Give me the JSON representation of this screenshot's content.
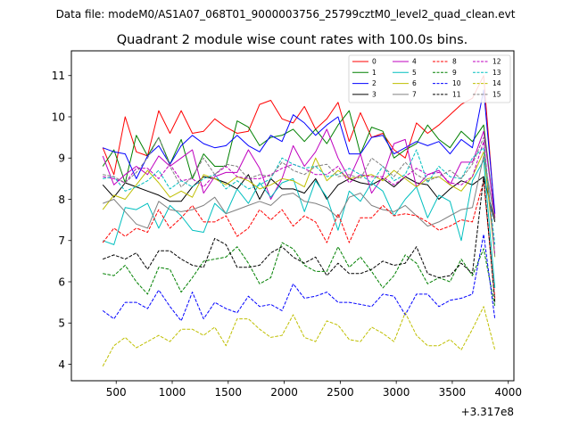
{
  "suptitle": "Data file: modeM0/AS1A07_068T01_9000003756_25799cztM0_level2_quad_clean.evt",
  "chart_data": {
    "type": "line",
    "title": "Quadrant 2 module wise count rates with 100.0s bins.",
    "xlabel": "",
    "ylabel": "",
    "x_offset_label": "+3.317e8",
    "xlim": [
      100,
      4050
    ],
    "ylim": [
      3.6,
      11.6
    ],
    "xticks": [
      500,
      1000,
      1500,
      2000,
      2500,
      3000,
      3500,
      4000
    ],
    "yticks": [
      4,
      5,
      6,
      7,
      8,
      9,
      10,
      11
    ],
    "legend_position": "top-right",
    "x": [
      380,
      480,
      580,
      680,
      780,
      880,
      980,
      1080,
      1180,
      1280,
      1380,
      1480,
      1580,
      1680,
      1780,
      1880,
      1980,
      2080,
      2180,
      2280,
      2380,
      2480,
      2580,
      2680,
      2780,
      2880,
      2980,
      3080,
      3180,
      3280,
      3380,
      3480,
      3580,
      3680,
      3780,
      3880
    ],
    "series": [
      {
        "name": "0",
        "color": "#ff0000",
        "dash": "solid",
        "values": [
          9.25,
          8.6,
          10.0,
          9.15,
          9.05,
          10.15,
          9.6,
          10.15,
          9.6,
          9.65,
          9.95,
          9.75,
          9.6,
          9.65,
          10.3,
          10.4,
          9.95,
          9.85,
          10.25,
          9.7,
          9.95,
          10.35,
          9.4,
          10.1,
          9.5,
          9.6,
          9.2,
          9.0,
          9.85,
          9.6,
          9.8,
          10.05,
          10.3,
          10.45,
          11.0,
          7.55
        ]
      },
      {
        "name": "1",
        "color": "#008000",
        "dash": "solid",
        "values": [
          8.8,
          9.2,
          8.4,
          9.55,
          9.05,
          9.5,
          8.85,
          9.45,
          8.5,
          9.1,
          8.8,
          8.8,
          9.9,
          9.75,
          9.3,
          9.5,
          9.55,
          9.7,
          9.4,
          9.7,
          9.35,
          9.8,
          10.15,
          9.1,
          9.75,
          9.65,
          9.0,
          9.2,
          9.35,
          9.8,
          9.45,
          9.25,
          9.65,
          9.4,
          9.8,
          7.5
        ]
      },
      {
        "name": "2",
        "color": "#0000ff",
        "dash": "solid",
        "values": [
          9.25,
          9.15,
          9.1,
          8.5,
          9.05,
          9.3,
          8.85,
          9.3,
          9.55,
          9.35,
          9.25,
          9.3,
          9.55,
          9.3,
          9.15,
          9.55,
          9.4,
          10.05,
          9.85,
          9.55,
          9.8,
          10.0,
          9.1,
          9.1,
          9.5,
          9.55,
          9.1,
          9.25,
          9.4,
          9.3,
          9.4,
          9.1,
          9.45,
          9.25,
          10.65,
          7.65
        ]
      },
      {
        "name": "3",
        "color": "#000000",
        "dash": "solid",
        "values": [
          8.35,
          8.05,
          8.4,
          8.3,
          8.2,
          8.1,
          7.95,
          7.95,
          8.3,
          8.55,
          8.5,
          8.4,
          8.25,
          8.6,
          8.0,
          8.5,
          8.25,
          8.25,
          8.15,
          8.5,
          8.0,
          8.35,
          8.5,
          8.4,
          8.35,
          8.5,
          8.3,
          8.55,
          8.4,
          8.35,
          8.0,
          8.25,
          8.45,
          8.35,
          8.55,
          7.45
        ]
      },
      {
        "name": "4",
        "color": "#bf00bf",
        "dash": "solid",
        "values": [
          9.05,
          8.35,
          8.6,
          8.8,
          8.6,
          9.05,
          8.8,
          9.0,
          9.2,
          8.15,
          8.55,
          8.65,
          8.65,
          9.2,
          8.75,
          8.0,
          8.5,
          9.3,
          8.8,
          9.15,
          9.7,
          9.0,
          8.5,
          9.1,
          8.15,
          8.55,
          9.35,
          9.45,
          8.3,
          8.6,
          8.7,
          8.35,
          8.9,
          8.9,
          9.65,
          7.55
        ]
      },
      {
        "name": "5",
        "color": "#00bfbf",
        "dash": "solid",
        "values": [
          7.0,
          6.9,
          7.8,
          7.75,
          7.9,
          7.3,
          7.85,
          7.6,
          7.25,
          7.2,
          7.9,
          7.65,
          8.25,
          7.9,
          8.4,
          8.05,
          8.4,
          8.5,
          7.7,
          8.45,
          8.05,
          7.25,
          8.2,
          7.95,
          8.4,
          8.2,
          7.6,
          8.0,
          8.3,
          7.55,
          8.1,
          7.95,
          7.0,
          8.45,
          8.95,
          5.85
        ]
      },
      {
        "name": "6",
        "color": "#bfbf00",
        "dash": "solid",
        "values": [
          7.75,
          8.1,
          8.0,
          8.35,
          8.7,
          8.4,
          8.05,
          8.2,
          8.05,
          8.6,
          8.5,
          8.35,
          8.55,
          8.45,
          8.25,
          8.35,
          8.5,
          8.45,
          8.3,
          9.0,
          8.45,
          8.7,
          8.5,
          8.55,
          8.6,
          8.45,
          8.7,
          8.5,
          8.3,
          8.5,
          8.55,
          8.35,
          8.2,
          8.55,
          9.15,
          6.6
        ]
      },
      {
        "name": "7",
        "color": "#808080",
        "dash": "solid",
        "values": [
          7.9,
          8.0,
          7.7,
          7.4,
          7.3,
          7.95,
          7.75,
          7.7,
          7.75,
          7.85,
          8.05,
          7.65,
          7.75,
          7.85,
          7.95,
          7.85,
          8.1,
          8.15,
          7.95,
          7.9,
          7.8,
          7.55,
          8.05,
          8.15,
          7.85,
          7.75,
          7.7,
          7.85,
          7.6,
          7.35,
          7.45,
          7.6,
          7.75,
          7.8,
          9.05,
          7.5
        ]
      },
      {
        "name": "8",
        "color": "#ff0000",
        "dash": "dashed",
        "values": [
          6.95,
          7.3,
          7.1,
          7.3,
          7.2,
          7.75,
          7.3,
          7.55,
          7.85,
          7.45,
          7.45,
          7.6,
          7.1,
          7.3,
          7.75,
          7.5,
          7.75,
          7.35,
          7.6,
          7.45,
          6.95,
          7.65,
          6.95,
          7.55,
          7.55,
          7.85,
          7.6,
          7.65,
          7.6,
          7.45,
          7.25,
          7.35,
          7.5,
          7.45,
          8.45,
          5.6
        ]
      },
      {
        "name": "9",
        "color": "#008000",
        "dash": "dashed",
        "values": [
          6.2,
          6.15,
          6.4,
          6.0,
          5.7,
          6.35,
          6.3,
          5.75,
          6.1,
          6.5,
          6.55,
          6.6,
          6.85,
          6.45,
          5.95,
          6.1,
          6.95,
          6.8,
          6.4,
          6.25,
          6.25,
          6.85,
          6.35,
          6.6,
          6.25,
          5.85,
          6.15,
          6.65,
          6.45,
          5.95,
          6.1,
          6.0,
          6.55,
          6.15,
          6.8,
          5.4
        ]
      },
      {
        "name": "10",
        "color": "#0000ff",
        "dash": "dashed",
        "values": [
          5.3,
          5.1,
          5.5,
          5.5,
          5.35,
          5.8,
          5.4,
          5.05,
          5.75,
          5.1,
          5.5,
          5.35,
          5.25,
          5.65,
          5.4,
          5.45,
          5.3,
          5.95,
          5.6,
          5.65,
          5.75,
          5.5,
          5.5,
          5.45,
          5.4,
          5.7,
          5.65,
          5.2,
          5.7,
          5.7,
          5.4,
          5.55,
          5.6,
          5.7,
          7.15,
          5.1
        ]
      },
      {
        "name": "11",
        "color": "#000000",
        "dash": "dashed",
        "values": [
          6.55,
          6.65,
          6.55,
          6.7,
          6.3,
          6.75,
          6.75,
          6.55,
          6.4,
          6.35,
          7.05,
          6.9,
          6.35,
          6.35,
          6.4,
          6.7,
          6.85,
          6.6,
          6.45,
          6.6,
          6.15,
          6.45,
          6.2,
          6.2,
          6.3,
          6.5,
          6.4,
          6.45,
          6.85,
          6.2,
          6.1,
          6.15,
          6.45,
          6.2,
          8.55,
          5.5
        ]
      },
      {
        "name": "12",
        "color": "#bf00bf",
        "dash": "dashed",
        "values": [
          8.55,
          8.5,
          8.4,
          8.75,
          8.75,
          8.5,
          8.85,
          8.45,
          8.5,
          8.3,
          8.6,
          8.8,
          8.55,
          8.5,
          8.5,
          8.6,
          8.75,
          8.85,
          8.75,
          8.6,
          8.6,
          8.8,
          8.4,
          8.6,
          8.55,
          8.55,
          8.35,
          8.55,
          8.75,
          8.6,
          8.65,
          8.4,
          8.35,
          8.55,
          9.4,
          6.65
        ]
      },
      {
        "name": "13",
        "color": "#00bfbf",
        "dash": "dashed",
        "values": [
          8.5,
          8.55,
          8.2,
          8.3,
          8.45,
          8.7,
          8.25,
          8.45,
          8.3,
          8.5,
          8.6,
          8.25,
          8.45,
          8.25,
          8.35,
          8.5,
          9.0,
          8.85,
          8.75,
          8.8,
          8.55,
          8.6,
          8.75,
          8.6,
          8.4,
          8.8,
          8.45,
          8.6,
          9.2,
          8.4,
          8.8,
          8.55,
          8.5,
          9.0,
          9.25,
          6.9
        ]
      },
      {
        "name": "14",
        "color": "#bfbf00",
        "dash": "dashed",
        "values": [
          3.95,
          4.45,
          4.65,
          4.4,
          4.55,
          4.7,
          4.55,
          4.85,
          4.85,
          4.7,
          4.9,
          4.45,
          5.1,
          5.1,
          4.85,
          4.65,
          4.7,
          5.2,
          4.65,
          4.55,
          5.05,
          4.95,
          4.6,
          4.55,
          4.9,
          4.75,
          4.55,
          5.25,
          4.7,
          4.45,
          4.45,
          4.6,
          4.35,
          4.85,
          5.4,
          4.35
        ]
      },
      {
        "name": "15",
        "color": "#808080",
        "dash": "dashed",
        "values": [
          8.6,
          8.55,
          8.4,
          8.65,
          9.0,
          9.5,
          8.8,
          8.3,
          8.55,
          9.0,
          8.6,
          8.85,
          8.8,
          8.5,
          8.6,
          8.55,
          8.9,
          8.7,
          8.6,
          8.8,
          8.85,
          8.55,
          8.6,
          8.5,
          9.0,
          8.8,
          8.55,
          8.9,
          8.6,
          8.45,
          8.55,
          8.7,
          8.5,
          8.85,
          9.5,
          6.6
        ]
      }
    ]
  }
}
